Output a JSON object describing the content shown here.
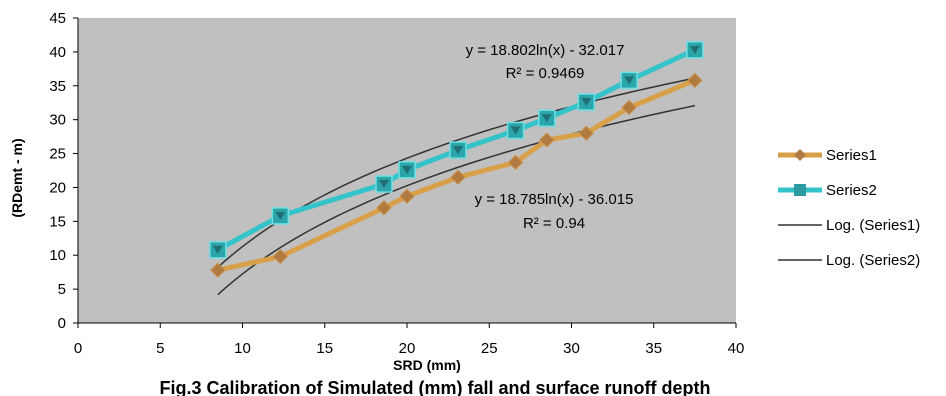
{
  "chart_data": {
    "type": "scatter",
    "title": "",
    "xlabel": "SRD (mm)",
    "ylabel": "(RDemt - m)",
    "xlim": [
      0,
      40
    ],
    "ylim": [
      0,
      45
    ],
    "xticks": [
      0,
      5,
      10,
      15,
      20,
      25,
      30,
      35,
      40
    ],
    "yticks": [
      0,
      5,
      10,
      15,
      20,
      25,
      30,
      35,
      40,
      45
    ],
    "grid": false,
    "plot_background": "#c0c0c0",
    "legend_position": "right",
    "series": [
      {
        "name": "Series1",
        "color": "#d9a04a",
        "marker": "diamond",
        "x": [
          8.5,
          12.3,
          18.6,
          20.0,
          23.1,
          26.6,
          28.5,
          30.9,
          33.5,
          37.5
        ],
        "y": [
          7.8,
          9.8,
          17.0,
          18.7,
          21.5,
          23.7,
          27.0,
          28.0,
          31.8,
          35.8
        ]
      },
      {
        "name": "Series2",
        "color": "#33c3c8",
        "marker": "square",
        "x": [
          8.5,
          12.3,
          18.6,
          20.0,
          23.1,
          26.6,
          28.5,
          30.9,
          33.5,
          37.5
        ],
        "y": [
          10.8,
          15.8,
          20.5,
          22.6,
          25.5,
          28.4,
          30.2,
          32.6,
          35.8,
          40.3
        ]
      }
    ],
    "trendlines": [
      {
        "name": "Log. (Series1)",
        "type": "log",
        "a": 18.785,
        "b": -36.015,
        "color": "#333333",
        "equation": "y = 18.785ln(x) - 36.015",
        "r2": "R² = 0.94"
      },
      {
        "name": "Log. (Series2)",
        "type": "log",
        "a": 18.802,
        "b": -32.017,
        "color": "#333333",
        "equation": "y = 18.802ln(x) - 32.017",
        "r2": "R² = 0.9469"
      }
    ],
    "caption": "Fig.3 Calibration of Simulated (mm) fall and surface runoff depth"
  }
}
